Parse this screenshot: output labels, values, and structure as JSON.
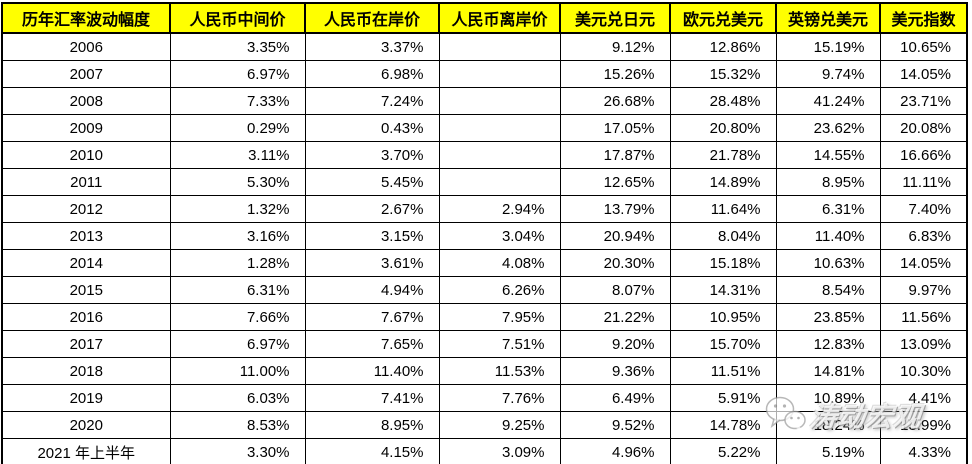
{
  "chart_data": {
    "type": "table",
    "title": "历年汇率波动幅度",
    "columns": [
      "历年汇率波动幅度",
      "人民币中间价",
      "人民币在岸价",
      "人民币离岸价",
      "美元兑日元",
      "欧元兑美元",
      "英镑兑美元",
      "美元指数"
    ],
    "rows": [
      [
        "2006",
        "3.35%",
        "3.37%",
        "",
        "9.12%",
        "12.86%",
        "15.19%",
        "10.65%"
      ],
      [
        "2007",
        "6.97%",
        "6.98%",
        "",
        "15.26%",
        "15.32%",
        "9.74%",
        "14.05%"
      ],
      [
        "2008",
        "7.33%",
        "7.24%",
        "",
        "26.68%",
        "28.48%",
        "41.24%",
        "23.71%"
      ],
      [
        "2009",
        "0.29%",
        "0.43%",
        "",
        "17.05%",
        "20.80%",
        "23.62%",
        "20.08%"
      ],
      [
        "2010",
        "3.11%",
        "3.70%",
        "",
        "17.87%",
        "21.78%",
        "14.55%",
        "16.66%"
      ],
      [
        "2011",
        "5.30%",
        "5.45%",
        "",
        "12.65%",
        "14.89%",
        "8.95%",
        "11.11%"
      ],
      [
        "2012",
        "1.32%",
        "2.67%",
        "2.94%",
        "13.79%",
        "11.64%",
        "6.31%",
        "7.40%"
      ],
      [
        "2013",
        "3.16%",
        "3.15%",
        "3.04%",
        "20.94%",
        "8.04%",
        "11.40%",
        "6.83%"
      ],
      [
        "2014",
        "1.28%",
        "3.61%",
        "4.08%",
        "20.30%",
        "15.18%",
        "10.63%",
        "14.05%"
      ],
      [
        "2015",
        "6.31%",
        "4.94%",
        "6.26%",
        "8.07%",
        "14.31%",
        "8.54%",
        "9.97%"
      ],
      [
        "2016",
        "7.66%",
        "7.67%",
        "7.95%",
        "21.22%",
        "10.95%",
        "23.85%",
        "11.56%"
      ],
      [
        "2017",
        "6.97%",
        "7.65%",
        "7.51%",
        "9.20%",
        "15.70%",
        "12.83%",
        "13.09%"
      ],
      [
        "2018",
        "11.00%",
        "11.40%",
        "11.53%",
        "9.36%",
        "11.51%",
        "14.81%",
        "10.30%"
      ],
      [
        "2019",
        "6.03%",
        "7.41%",
        "7.76%",
        "6.49%",
        "5.91%",
        "10.89%",
        "4.41%"
      ],
      [
        "2020",
        "8.53%",
        "8.95%",
        "9.25%",
        "9.52%",
        "14.78%",
        "18.24%",
        "13.99%"
      ],
      [
        "2021 年上半年",
        "3.30%",
        "4.15%",
        "3.09%",
        "4.96%",
        "5.22%",
        "5.19%",
        "4.33%"
      ]
    ],
    "layout_hints": {
      "header_background": "#FFFF00",
      "header_text_color": "#000000",
      "border_color": "#000000",
      "body_background": "#FFFFFF",
      "value_alignment": "right",
      "label_alignment": "center"
    }
  },
  "watermark": {
    "icon": "wechat-icon",
    "text": "涛动宏观"
  }
}
